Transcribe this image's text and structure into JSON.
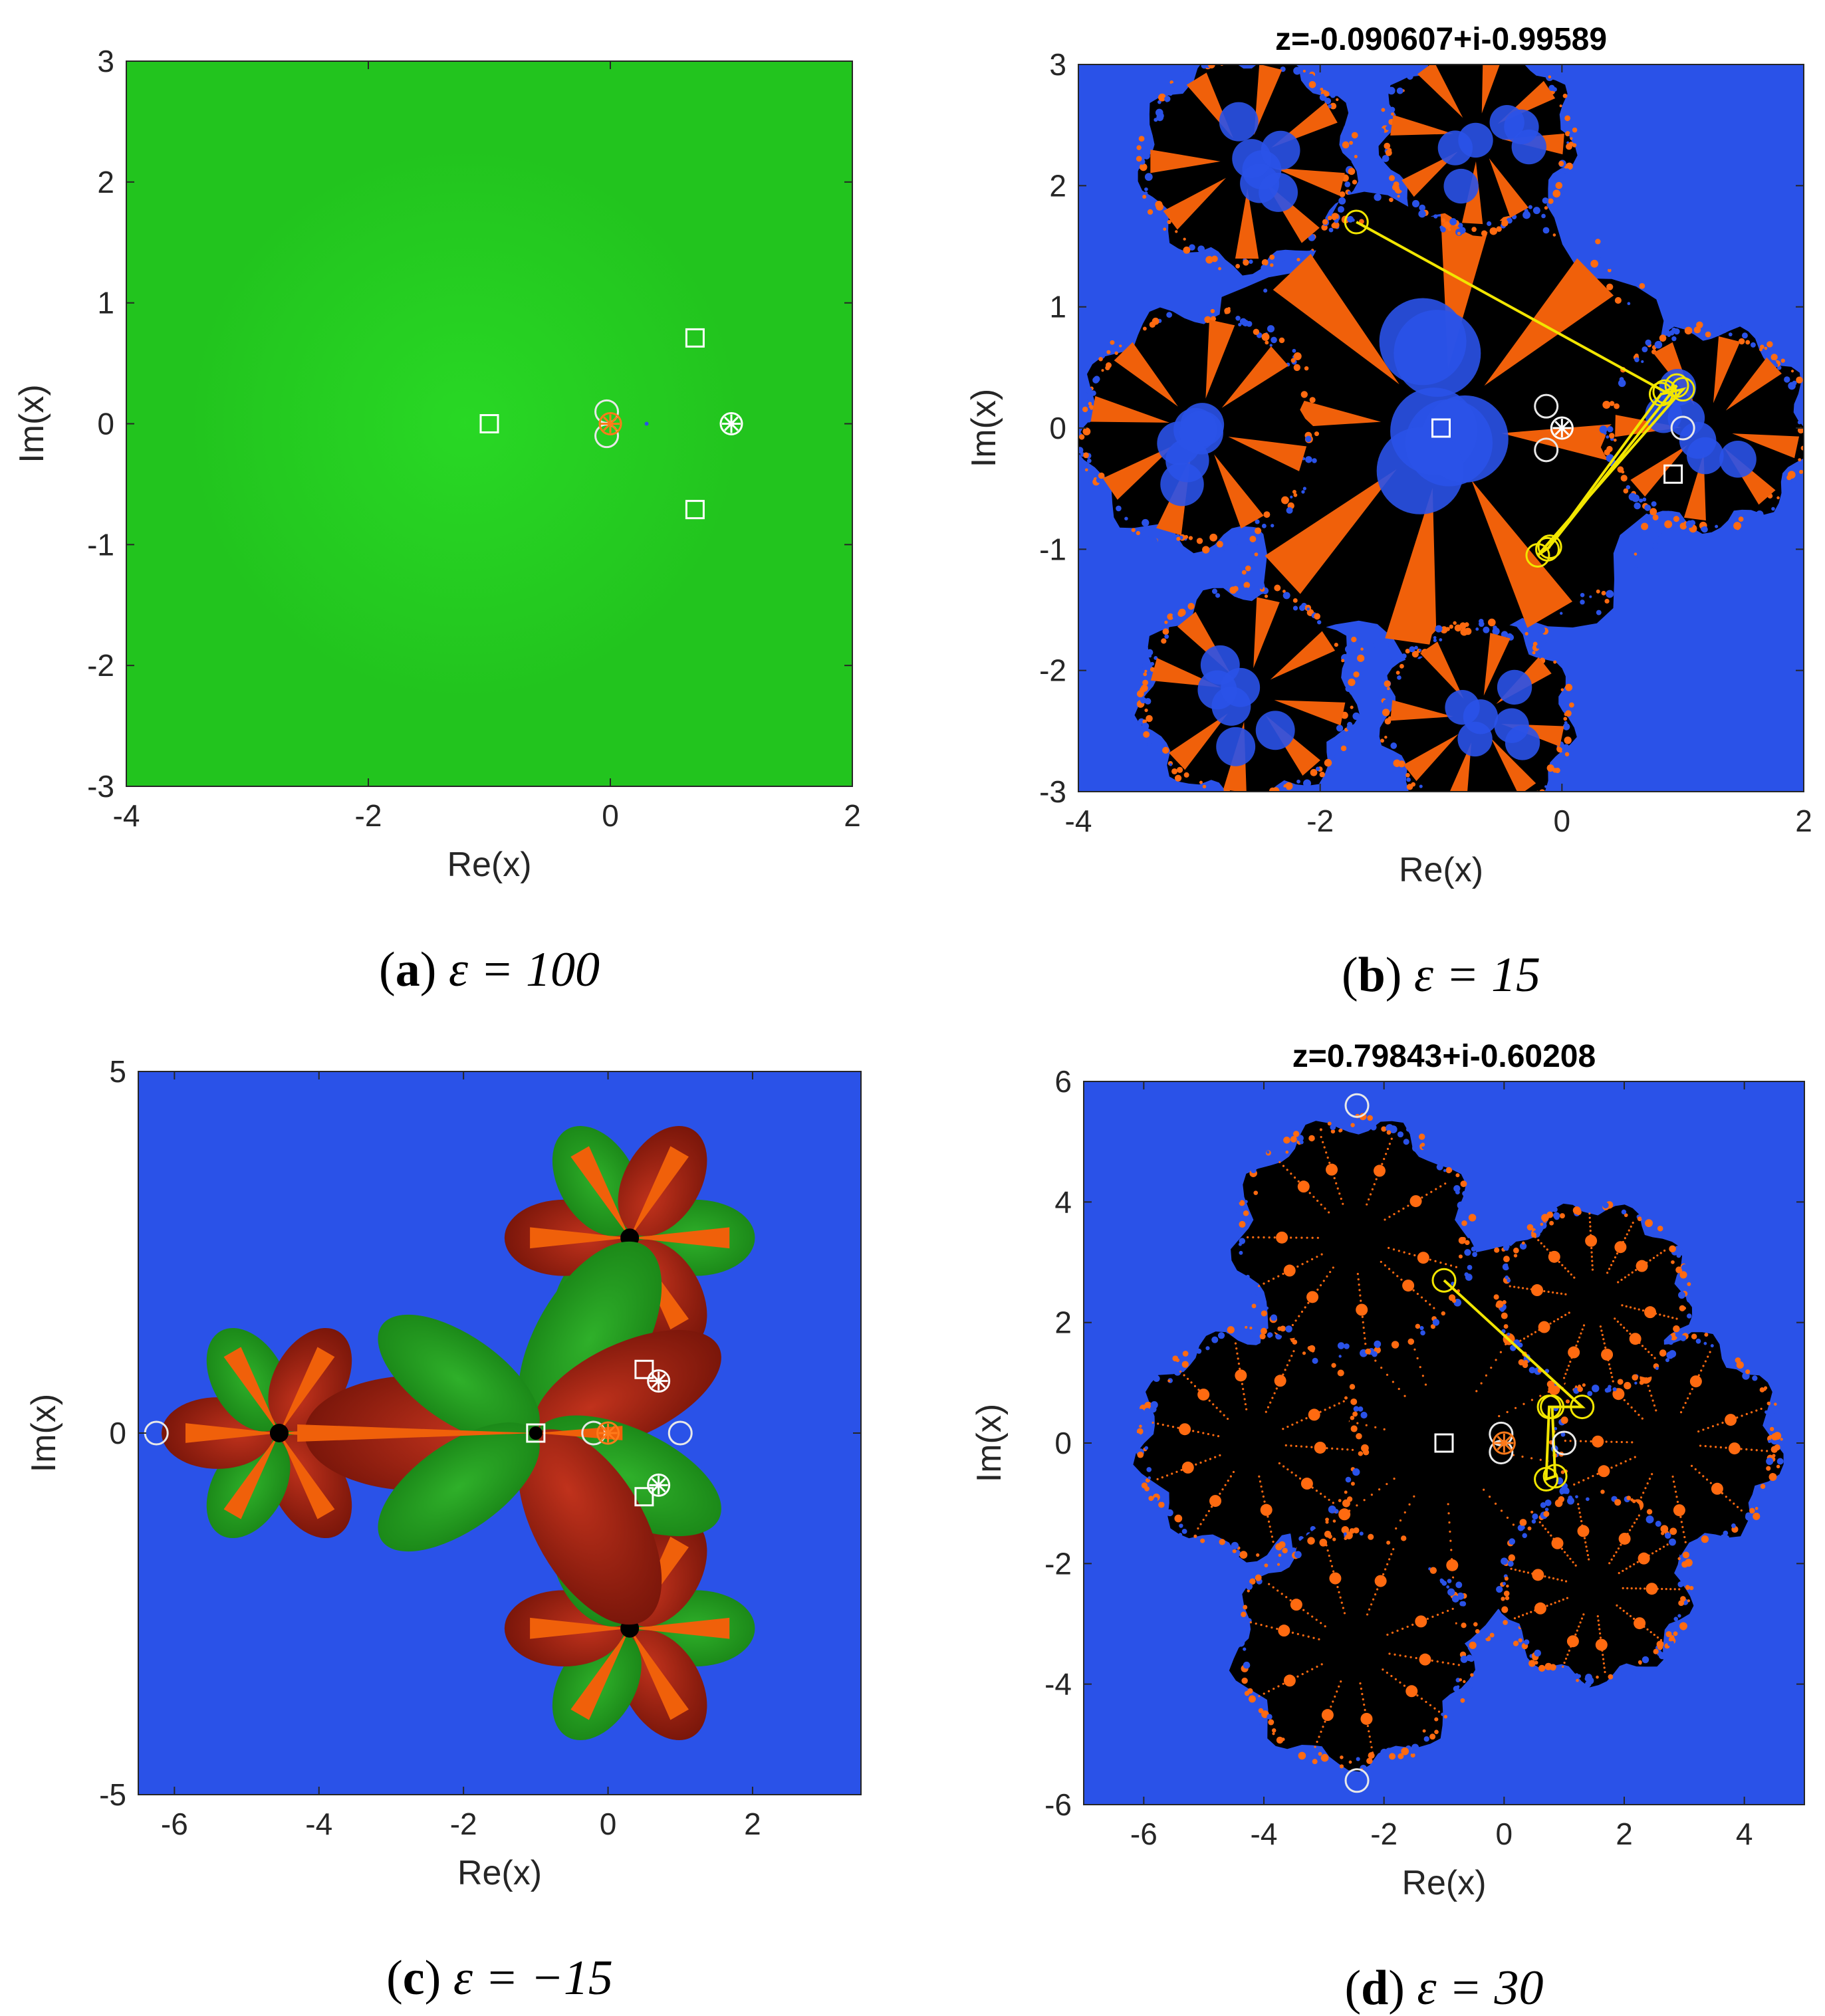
{
  "chart_data": [
    {
      "id": "a",
      "type": "heatmap",
      "title": "",
      "caption": {
        "tag": "a",
        "text": "ε = 100"
      },
      "xlabel": "Re(x)",
      "ylabel": "Im(x)",
      "xlim": [
        -4,
        2
      ],
      "ylim": [
        -3,
        3
      ],
      "xticks": [
        -4,
        -2,
        0,
        2
      ],
      "yticks": [
        -3,
        -2,
        -1,
        0,
        1,
        2,
        3
      ],
      "grid": false,
      "background": "#22c41e",
      "fractal": "none",
      "regions": [
        {
          "kind": "glow",
          "cx": -1.2,
          "cy": 0,
          "r": 2.3,
          "color": "#2ee82a"
        }
      ],
      "markers": [
        {
          "kind": "square",
          "x": -1.0,
          "y": 0.0
        },
        {
          "kind": "square",
          "x": 0.7,
          "y": 0.71
        },
        {
          "kind": "square",
          "x": 0.7,
          "y": -0.71
        },
        {
          "kind": "circle",
          "x": -0.03,
          "y": 0.1
        },
        {
          "kind": "circle",
          "x": -0.03,
          "y": -0.1
        },
        {
          "kind": "star",
          "x": 0.0,
          "y": 0.0,
          "color": "#ff7a1a"
        },
        {
          "kind": "star",
          "x": 1.0,
          "y": 0.0,
          "color": "#ffffff"
        }
      ],
      "path": []
    },
    {
      "id": "b",
      "type": "heatmap",
      "title": "z=-0.090607+i-0.99589",
      "caption": {
        "tag": "b",
        "text": "ε = 15"
      },
      "xlabel": "Re(x)",
      "ylabel": "Im(x)",
      "xlim": [
        -4,
        2
      ],
      "ylim": [
        -3,
        3
      ],
      "xticks": [
        -4,
        -2,
        0,
        2
      ],
      "yticks": [
        -3,
        -2,
        -1,
        0,
        1,
        2,
        3
      ],
      "grid": false,
      "background": "#2a52e8",
      "fractal": "petals",
      "regions": [
        {
          "kind": "disk",
          "cx": -1.0,
          "cy": 0.0,
          "r": 2.0,
          "color": "#000000"
        },
        {
          "kind": "disk",
          "cx": -3.0,
          "cy": 0.0,
          "r": 1.0,
          "color": "#000000"
        },
        {
          "kind": "disk",
          "cx": 1.2,
          "cy": 0.0,
          "r": 0.85,
          "color": "#000000"
        },
        {
          "kind": "disk",
          "cx": -2.6,
          "cy": 2.2,
          "r": 0.9,
          "color": "#000000"
        },
        {
          "kind": "disk",
          "cx": -2.6,
          "cy": -2.2,
          "r": 0.9,
          "color": "#000000"
        },
        {
          "kind": "disk",
          "cx": -0.7,
          "cy": 2.4,
          "r": 0.8,
          "color": "#000000"
        },
        {
          "kind": "disk",
          "cx": -0.7,
          "cy": -2.4,
          "r": 0.8,
          "color": "#000000"
        }
      ],
      "markers": [
        {
          "kind": "square",
          "x": -1.0,
          "y": 0.0
        },
        {
          "kind": "square",
          "x": 0.92,
          "y": -0.38
        },
        {
          "kind": "circle",
          "x": -0.13,
          "y": 0.18
        },
        {
          "kind": "circle",
          "x": -0.13,
          "y": -0.18
        },
        {
          "kind": "circle",
          "x": 1.0,
          "y": 0.0
        },
        {
          "kind": "star",
          "x": 0.0,
          "y": 0.0,
          "color": "#ffffff"
        }
      ],
      "path": [
        [
          -1.7,
          1.7
        ],
        [
          0.85,
          0.3
        ],
        [
          0.95,
          0.35
        ],
        [
          -0.12,
          -1.0
        ],
        [
          0.82,
          0.28
        ],
        [
          1.0,
          0.32
        ],
        [
          -0.2,
          -1.05
        ],
        [
          -0.1,
          -0.98
        ]
      ]
    },
    {
      "id": "c",
      "type": "heatmap",
      "title": "",
      "caption": {
        "tag": "c",
        "text": "ε = −15"
      },
      "xlabel": "Re(x)",
      "ylabel": "Im(x)",
      "xlim": [
        -6.5,
        3.5
      ],
      "ylim": [
        -5,
        5
      ],
      "xticks": [
        -6,
        -4,
        -2,
        0,
        2
      ],
      "yticks": [
        -5,
        0,
        5
      ],
      "grid": false,
      "background": "#2a52e8",
      "fractal": "flower",
      "regions": [
        {
          "kind": "bud",
          "cx": -1.0,
          "cy": 0.0,
          "r": 0.0
        },
        {
          "kind": "bud",
          "cx": -4.55,
          "cy": 0.0,
          "r": 1.55
        },
        {
          "kind": "bud",
          "cx": 0.3,
          "cy": 2.7,
          "r": 1.65
        },
        {
          "kind": "bud",
          "cx": 0.3,
          "cy": -2.7,
          "r": 1.65
        }
      ],
      "markers": [
        {
          "kind": "square",
          "x": -1.0,
          "y": 0.0
        },
        {
          "kind": "square",
          "x": 0.5,
          "y": 0.88
        },
        {
          "kind": "square",
          "x": 0.5,
          "y": -0.88
        },
        {
          "kind": "circle",
          "x": -6.25,
          "y": 0.0
        },
        {
          "kind": "circle",
          "x": -0.2,
          "y": 0.0
        },
        {
          "kind": "circle",
          "x": 1.0,
          "y": 0.0
        },
        {
          "kind": "star",
          "x": 0.0,
          "y": 0.0,
          "color": "#ff7a1a"
        },
        {
          "kind": "star",
          "x": 0.7,
          "y": 0.72,
          "color": "#ffffff"
        },
        {
          "kind": "star",
          "x": 0.7,
          "y": -0.72,
          "color": "#ffffff"
        }
      ],
      "path": []
    },
    {
      "id": "d",
      "type": "heatmap",
      "title": "z=0.79843+i-0.60208",
      "caption": {
        "tag": "d",
        "text": "ε = 30"
      },
      "xlabel": "Re(x)",
      "ylabel": "Im(x)",
      "xlim": [
        -7,
        5
      ],
      "ylim": [
        -6,
        6
      ],
      "xticks": [
        -6,
        -4,
        -2,
        0,
        2,
        4
      ],
      "yticks": [
        -6,
        -4,
        -2,
        0,
        2,
        4,
        6
      ],
      "grid": false,
      "background": "#2a52e8",
      "fractal": "blob",
      "regions": [
        {
          "kind": "disk",
          "cx": -1.0,
          "cy": 0.0,
          "r": 3.4,
          "color": "#000000"
        },
        {
          "kind": "disk",
          "cx": -4.2,
          "cy": 0.0,
          "r": 1.9,
          "color": "#000000"
        },
        {
          "kind": "disk",
          "cx": 2.7,
          "cy": 0.0,
          "r": 1.9,
          "color": "#000000"
        },
        {
          "kind": "disk",
          "cx": -2.5,
          "cy": 3.4,
          "r": 2.0,
          "color": "#000000"
        },
        {
          "kind": "disk",
          "cx": -2.5,
          "cy": -3.4,
          "r": 2.0,
          "color": "#000000"
        },
        {
          "kind": "disk",
          "cx": 1.5,
          "cy": 2.4,
          "r": 1.6,
          "color": "#000000"
        },
        {
          "kind": "disk",
          "cx": 1.5,
          "cy": -2.4,
          "r": 1.6,
          "color": "#000000"
        }
      ],
      "markers": [
        {
          "kind": "square",
          "x": -1.0,
          "y": 0.0
        },
        {
          "kind": "circle",
          "x": -2.45,
          "y": 5.6
        },
        {
          "kind": "circle",
          "x": -2.45,
          "y": -5.6
        },
        {
          "kind": "circle",
          "x": -0.05,
          "y": 0.15
        },
        {
          "kind": "circle",
          "x": -0.05,
          "y": -0.15
        },
        {
          "kind": "circle",
          "x": 1.0,
          "y": 0.0
        },
        {
          "kind": "star",
          "x": 0.0,
          "y": 0.0,
          "color": "#ff7a1a"
        }
      ],
      "path": [
        [
          -1.0,
          2.7
        ],
        [
          1.3,
          0.6
        ],
        [
          0.75,
          0.6
        ],
        [
          0.7,
          -0.6
        ],
        [
          0.85,
          -0.55
        ],
        [
          0.8,
          0.6
        ]
      ]
    }
  ]
}
